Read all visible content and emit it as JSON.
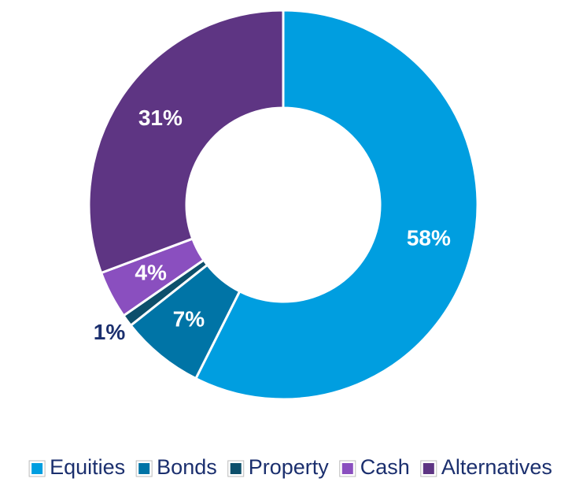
{
  "chart_data": {
    "type": "donut",
    "categories": [
      "Equities",
      "Bonds",
      "Property",
      "Cash",
      "Alternatives"
    ],
    "values": [
      58,
      7,
      1,
      4,
      31
    ],
    "value_labels": [
      "58%",
      "7%",
      "1%",
      "4%",
      "31%"
    ],
    "colors": [
      "#009ee0",
      "#0074a6",
      "#0d4f6b",
      "#8a4fbf",
      "#5e3583"
    ],
    "legend": "bottom"
  }
}
